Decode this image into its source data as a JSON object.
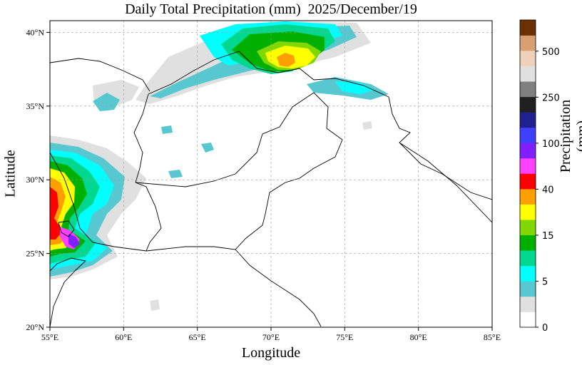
{
  "title": "Daily Total Precipitation (mm)  2025/December/19",
  "xlabel": "Longitude",
  "ylabel": "Latitude",
  "colorbar": {
    "label": "Precipitation (mm)",
    "colors": [
      "#ffffff",
      "#e0e0e0",
      "#58c8d0",
      "#00ffff",
      "#00d890",
      "#00b000",
      "#80d800",
      "#ffff00",
      "#ffa000",
      "#ff0000",
      "#ff40ff",
      "#8020ff",
      "#4040ff",
      "#202090",
      "#202020",
      "#808080",
      "#e0e0e0",
      "#f0d0b8",
      "#d8a070",
      "#6a3000"
    ],
    "tick_labels": [
      "0",
      "5",
      "15",
      "40",
      "100",
      "250",
      "500"
    ]
  },
  "axes": {
    "x_ticks": [
      "55°E",
      "60°E",
      "65°E",
      "70°E",
      "75°E",
      "80°E",
      "85°E"
    ],
    "y_ticks": [
      "20°N",
      "25°N",
      "30°N",
      "35°N",
      "40°N"
    ],
    "lon_range": [
      55,
      85
    ],
    "lat_range": [
      20,
      40.8
    ],
    "grid": true
  }
}
